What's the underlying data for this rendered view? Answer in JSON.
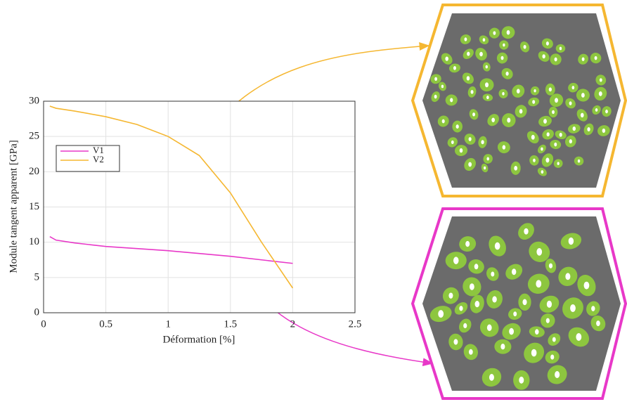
{
  "chart_data": {
    "type": "line",
    "xlabel": "Déformation [%]",
    "ylabel": "Module tangent apparent [GPa]",
    "x": [
      0.05,
      0.1,
      0.25,
      0.5,
      0.75,
      1,
      1.25,
      1.5,
      1.75,
      2
    ],
    "series": [
      {
        "name": "V1",
        "color": "#e838c8",
        "values": [
          10.8,
          10.3,
          9.9,
          9.4,
          9.1,
          8.8,
          8.4,
          8.0,
          7.5,
          7.0
        ]
      },
      {
        "name": "V2",
        "color": "#f5b731",
        "values": [
          29.3,
          29.0,
          28.6,
          27.8,
          26.7,
          25.0,
          22.3,
          17.0,
          10.0,
          3.5
        ]
      }
    ],
    "xlim": [
      0,
      2.5
    ],
    "xticks": [
      0,
      0.5,
      1,
      1.5,
      2,
      2.5
    ],
    "ylim": [
      0,
      30
    ],
    "yticks": [
      0,
      5,
      10,
      15,
      20,
      25,
      30
    ],
    "grid": true,
    "legend": "upper left"
  }
}
